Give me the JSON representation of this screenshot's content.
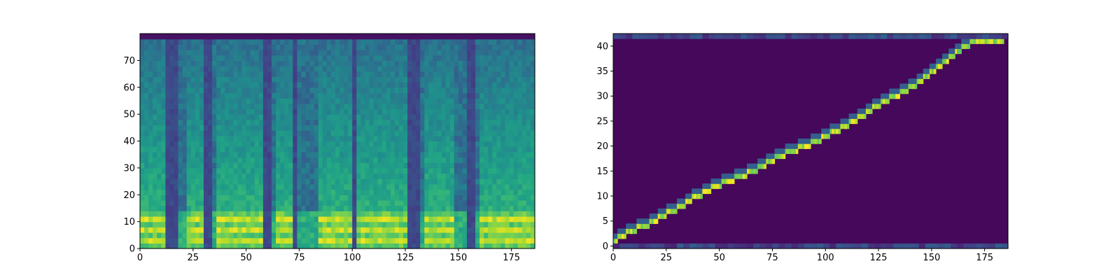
{
  "chart_data": [
    {
      "type": "heatmap",
      "title": "",
      "xlabel": "",
      "ylabel": "",
      "xlim": [
        0,
        186
      ],
      "ylim": [
        0,
        80
      ],
      "x_ticks": [
        0,
        25,
        50,
        75,
        100,
        125,
        150,
        175
      ],
      "y_ticks": [
        0,
        10,
        20,
        30,
        40,
        50,
        60,
        70
      ],
      "x_tick_labels": [
        "0",
        "25",
        "50",
        "75",
        "100",
        "125",
        "150",
        "175"
      ],
      "y_tick_labels": [
        "0",
        "10",
        "20",
        "30",
        "40",
        "50",
        "60",
        "70"
      ],
      "colormap": "viridis",
      "content": "mel spectrogram",
      "high_energy_time_ranges": [
        [
          0,
          12
        ],
        [
          23,
          29
        ],
        [
          36,
          58
        ],
        [
          65,
          71
        ],
        [
          85,
          99
        ],
        [
          103,
          126
        ],
        [
          135,
          148
        ],
        [
          160,
          186
        ]
      ],
      "silence_time_ranges": [
        [
          13,
          17
        ],
        [
          30,
          34
        ],
        [
          59,
          62
        ],
        [
          72,
          74
        ],
        [
          100,
          102
        ],
        [
          127,
          132
        ],
        [
          155,
          158
        ]
      ],
      "bright_band_rows": [
        0,
        12
      ],
      "grid": false
    },
    {
      "type": "heatmap",
      "title": "",
      "xlabel": "",
      "ylabel": "",
      "xlim": [
        0,
        186
      ],
      "ylim": [
        -0.5,
        42.5
      ],
      "x_ticks": [
        0,
        25,
        50,
        75,
        100,
        125,
        150,
        175
      ],
      "y_ticks": [
        0,
        5,
        10,
        15,
        20,
        25,
        30,
        35,
        40
      ],
      "x_tick_labels": [
        "0",
        "25",
        "50",
        "75",
        "100",
        "125",
        "150",
        "175"
      ],
      "y_tick_labels": [
        "0",
        "5",
        "10",
        "15",
        "20",
        "25",
        "30",
        "35",
        "40"
      ],
      "colormap": "viridis",
      "content": "attention alignment",
      "alignment_path": [
        [
          0,
          1
        ],
        [
          3,
          2
        ],
        [
          8,
          3
        ],
        [
          14,
          4
        ],
        [
          19,
          5
        ],
        [
          23,
          6
        ],
        [
          27,
          7
        ],
        [
          32,
          8
        ],
        [
          35,
          9
        ],
        [
          39,
          10
        ],
        [
          44,
          11
        ],
        [
          48,
          12
        ],
        [
          54,
          13
        ],
        [
          60,
          14
        ],
        [
          66,
          15
        ],
        [
          70,
          16
        ],
        [
          73,
          17
        ],
        [
          78,
          18
        ],
        [
          84,
          19
        ],
        [
          90,
          20
        ],
        [
          95,
          21
        ],
        [
          100,
          22
        ],
        [
          104,
          23
        ],
        [
          109,
          24
        ],
        [
          113,
          25
        ],
        [
          117,
          26
        ],
        [
          120,
          27
        ],
        [
          123,
          28
        ],
        [
          128,
          29
        ],
        [
          132,
          30
        ],
        [
          137,
          31
        ],
        [
          141,
          32
        ],
        [
          144,
          33
        ],
        [
          147,
          34
        ],
        [
          150,
          35
        ],
        [
          153,
          36
        ],
        [
          156,
          37
        ],
        [
          159,
          38
        ],
        [
          162,
          39
        ],
        [
          165,
          40
        ],
        [
          170,
          41
        ],
        [
          183,
          41
        ]
      ],
      "grid": false
    }
  ]
}
